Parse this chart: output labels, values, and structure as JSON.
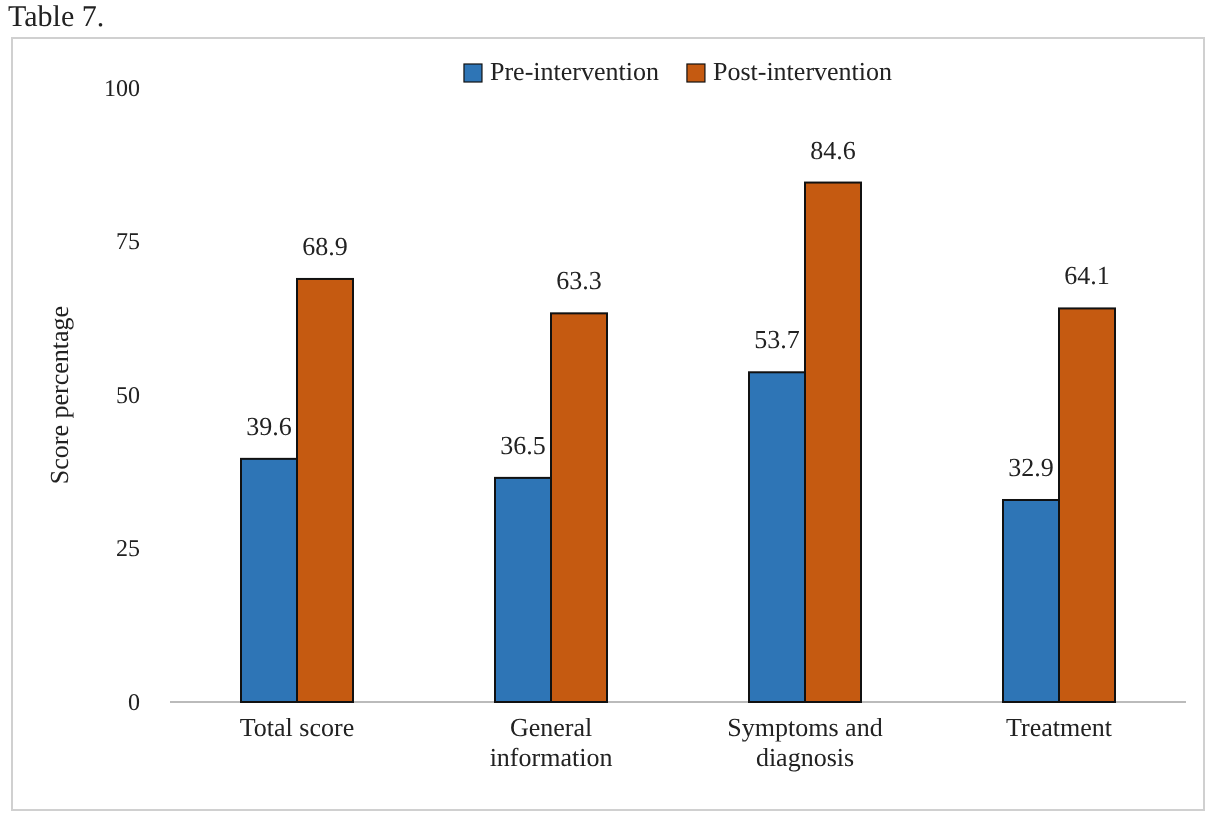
{
  "chart_data": {
    "type": "bar",
    "ylabel": "Score percentage",
    "annotations": [
      "Table 7."
    ],
    "categories": [
      "Total score",
      "General information",
      "Symptoms and diagnosis",
      "Treatment"
    ],
    "series": [
      {
        "name": "Pre-intervention",
        "color": "#2e75b6",
        "values": [
          39.6,
          36.5,
          53.7,
          32.9
        ]
      },
      {
        "name": "Post-intervention",
        "color": "#c55a11",
        "values": [
          68.9,
          63.3,
          84.6,
          64.1
        ]
      }
    ],
    "ylim": [
      0,
      100
    ],
    "yticks": [
      0,
      25,
      50,
      75,
      100
    ],
    "grid": false,
    "legend": "top",
    "data_labels": true
  }
}
